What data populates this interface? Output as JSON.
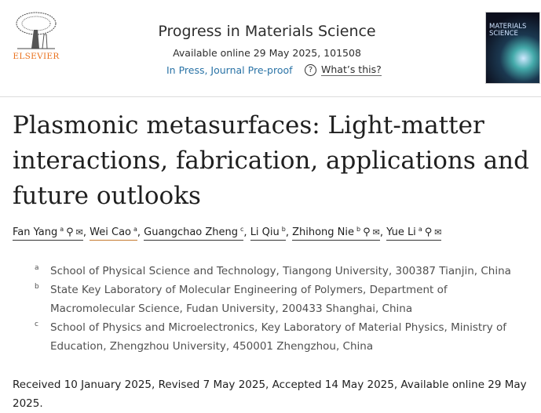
{
  "header": {
    "publisher": "ELSEVIER",
    "journal_title": "Progress in Materials Science",
    "available": "Available online 29 May 2025, 101508",
    "status_link": "In Press, Journal Pre-proof",
    "whats_this": "What’s this?",
    "cover_text": "MATERIALS SCIENCE"
  },
  "article": {
    "title": "Plasmonic metasurfaces: Light-matter interactions, fabrication, applications and future outlooks",
    "authors": [
      {
        "name": "Fan Yang",
        "aff": "a",
        "icons": [
          "person-icon",
          "email-icon"
        ]
      },
      {
        "name": "Wei Cao",
        "aff": "a",
        "icons": []
      },
      {
        "name": "Guangchao Zheng",
        "aff": "c",
        "icons": []
      },
      {
        "name": "Li Qiu",
        "aff": "b",
        "icons": []
      },
      {
        "name": "Zhihong Nie",
        "aff": "b",
        "icons": [
          "person-icon",
          "email-icon"
        ]
      },
      {
        "name": "Yue Li",
        "aff": "a",
        "icons": [
          "person-icon",
          "email-icon"
        ]
      }
    ],
    "affiliations": [
      {
        "label": "a",
        "text": "School of Physical Science and Technology, Tiangong University, 300387 Tianjin, China"
      },
      {
        "label": "b",
        "text": "State Key Laboratory of Molecular Engineering of Polymers, Department of Macromolecular Science, Fudan University, 200433 Shanghai, China"
      },
      {
        "label": "c",
        "text": "School of Physics and Microelectronics, Key Laboratory of Material Physics, Ministry of Education, Zhengzhou University, 450001 Zhengzhou, China"
      }
    ],
    "dates": "Received 10 January 2025, Revised 7 May 2025, Accepted 14 May 2025, Available online 29 May 2025."
  },
  "colors": {
    "publisher": "#e9711c",
    "link": "#2a73a6"
  }
}
